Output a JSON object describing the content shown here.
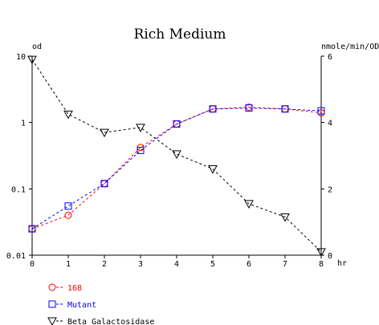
{
  "chart_data": {
    "type": "line",
    "title": "Rich Medium",
    "x": [
      0,
      1,
      2,
      3,
      4,
      5,
      6,
      7,
      8
    ],
    "xlabel": "hr",
    "xlim": [
      0,
      8
    ],
    "x_ticks": [
      "0",
      "1",
      "2",
      "3",
      "4",
      "5",
      "6",
      "7",
      "8"
    ],
    "y_left": {
      "label": "od",
      "scale": "log",
      "lim": [
        0.01,
        10
      ],
      "ticks": [
        {
          "value": 0.01,
          "label": "0.01"
        },
        {
          "value": 0.1,
          "label": "0.1"
        },
        {
          "value": 1,
          "label": "1"
        },
        {
          "value": 10,
          "label": "10"
        }
      ]
    },
    "y_right": {
      "label": "nmole/min/OD",
      "scale": "linear",
      "lim": [
        0,
        6
      ],
      "ticks": [
        {
          "value": 0,
          "label": "0"
        },
        {
          "value": 2,
          "label": "2"
        },
        {
          "value": 4,
          "label": "4"
        },
        {
          "value": 6,
          "label": "6"
        }
      ]
    },
    "grid": false,
    "legend_position": "bottom-left",
    "series": [
      {
        "name": "168",
        "axis": "left",
        "marker": "circle",
        "color": "#ff0000",
        "values": [
          0.025,
          0.04,
          0.12,
          0.42,
          0.95,
          1.6,
          1.7,
          1.6,
          1.4
        ]
      },
      {
        "name": "Mutant",
        "axis": "left",
        "marker": "square",
        "color": "#0000ff",
        "values": [
          0.025,
          0.055,
          0.12,
          0.38,
          0.95,
          1.6,
          1.65,
          1.6,
          1.5
        ]
      },
      {
        "name": "Beta Galactosidase",
        "axis": "right",
        "marker": "triangle-down",
        "color": "#000000",
        "values": [
          5.9,
          4.25,
          3.7,
          3.85,
          3.05,
          2.6,
          1.55,
          1.15,
          0.1
        ]
      }
    ]
  }
}
